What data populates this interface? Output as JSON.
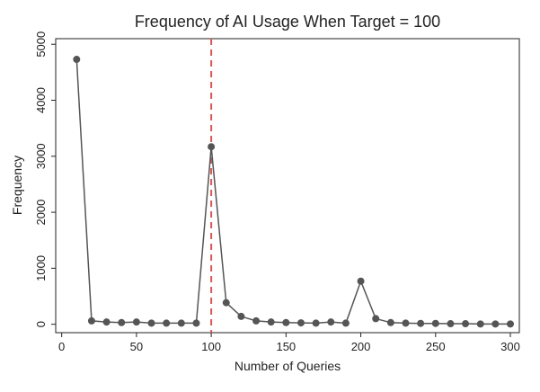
{
  "chart_data": {
    "type": "line",
    "title": "Frequency of AI Usage When Target = 100",
    "x_label": "Number of Queries",
    "y_label": "Frequency",
    "x": [
      10,
      20,
      30,
      40,
      50,
      60,
      70,
      80,
      90,
      100,
      110,
      120,
      130,
      140,
      150,
      160,
      170,
      180,
      190,
      200,
      210,
      220,
      230,
      240,
      250,
      260,
      270,
      280,
      290,
      300
    ],
    "series": [
      {
        "name": "Frequency",
        "color": "#555555",
        "values": [
          4730,
          60,
          40,
          30,
          40,
          20,
          20,
          20,
          20,
          3170,
          385,
          140,
          60,
          40,
          30,
          25,
          20,
          40,
          20,
          770,
          100,
          30,
          20,
          15,
          15,
          10,
          10,
          5,
          5,
          5
        ]
      }
    ],
    "vline": {
      "x": 100,
      "color": "#e8514f"
    },
    "xlim": [
      -4,
      306
    ],
    "xticks": [
      0,
      50,
      100,
      150,
      200,
      250,
      300
    ],
    "ylim": [
      -150,
      5100
    ],
    "yticks": [
      0,
      1000,
      2000,
      3000,
      4000,
      5000
    ],
    "grid": false
  }
}
